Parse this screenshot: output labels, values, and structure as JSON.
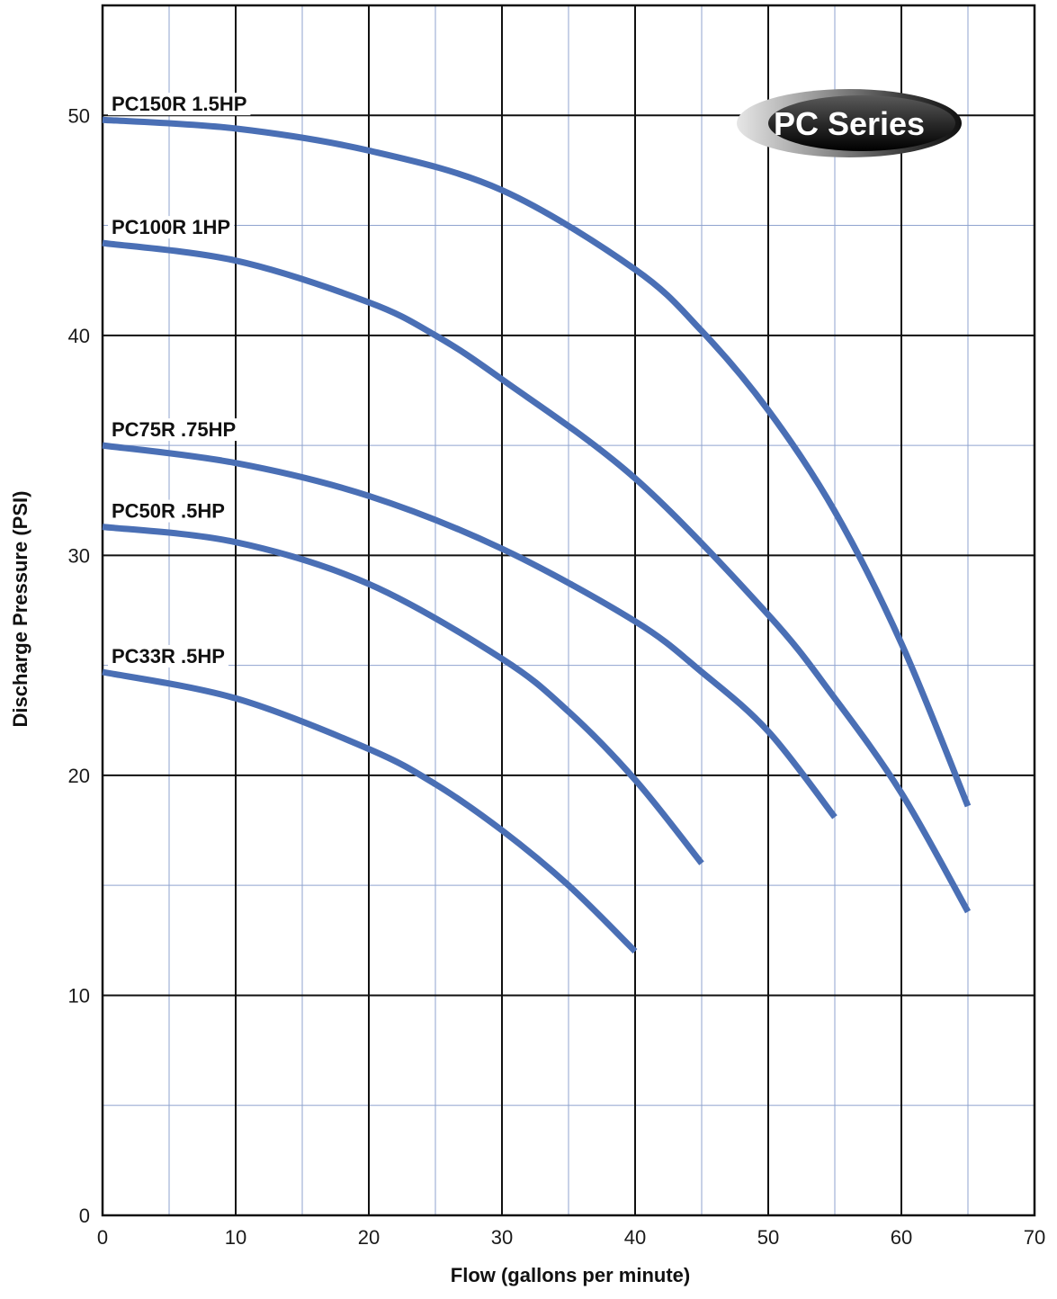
{
  "chart_data": {
    "type": "line",
    "xlabel": "Flow (gallons per minute)",
    "ylabel": "Discharge Pressure (PSI)",
    "xlim": [
      0,
      70
    ],
    "ylim": [
      0,
      55
    ],
    "x_ticks": [
      0,
      10,
      20,
      30,
      40,
      50,
      60,
      70
    ],
    "y_ticks": [
      0,
      10,
      20,
      30,
      40,
      50
    ],
    "x_minor_step": 5,
    "y_minor_step": 5,
    "grid": true,
    "badge": "PC Series",
    "colors": {
      "line": "#4a6fb5",
      "major_grid": "#111111",
      "minor_grid": "#8fa3cf"
    },
    "series": [
      {
        "name": "PC150R  1.5HP",
        "points": [
          [
            0,
            49.8
          ],
          [
            10,
            49.4
          ],
          [
            20,
            48.4
          ],
          [
            30,
            46.6
          ],
          [
            40,
            43.0
          ],
          [
            45,
            40.2
          ],
          [
            50,
            36.6
          ],
          [
            55,
            32.0
          ],
          [
            60,
            26.0
          ],
          [
            65,
            18.6
          ]
        ]
      },
      {
        "name": "PC100R  1HP",
        "points": [
          [
            0,
            44.2
          ],
          [
            10,
            43.4
          ],
          [
            20,
            41.5
          ],
          [
            25,
            40.0
          ],
          [
            30,
            38.0
          ],
          [
            40,
            33.5
          ],
          [
            50,
            27.3
          ],
          [
            55,
            23.5
          ],
          [
            60,
            19.2
          ],
          [
            65,
            13.8
          ]
        ]
      },
      {
        "name": "PC75R  .75HP",
        "points": [
          [
            0,
            35.0
          ],
          [
            10,
            34.2
          ],
          [
            20,
            32.7
          ],
          [
            30,
            30.3
          ],
          [
            40,
            27.0
          ],
          [
            45,
            24.7
          ],
          [
            50,
            22.0
          ],
          [
            55,
            18.1
          ]
        ]
      },
      {
        "name": "PC50R  .5HP",
        "points": [
          [
            0,
            31.3
          ],
          [
            10,
            30.6
          ],
          [
            20,
            28.7
          ],
          [
            30,
            25.3
          ],
          [
            35,
            22.9
          ],
          [
            40,
            19.8
          ],
          [
            45,
            16.0
          ]
        ]
      },
      {
        "name": "PC33R  .5HP",
        "points": [
          [
            0,
            24.7
          ],
          [
            10,
            23.5
          ],
          [
            20,
            21.2
          ],
          [
            25,
            19.6
          ],
          [
            30,
            17.5
          ],
          [
            35,
            15.0
          ],
          [
            40,
            12.0
          ]
        ]
      }
    ]
  }
}
